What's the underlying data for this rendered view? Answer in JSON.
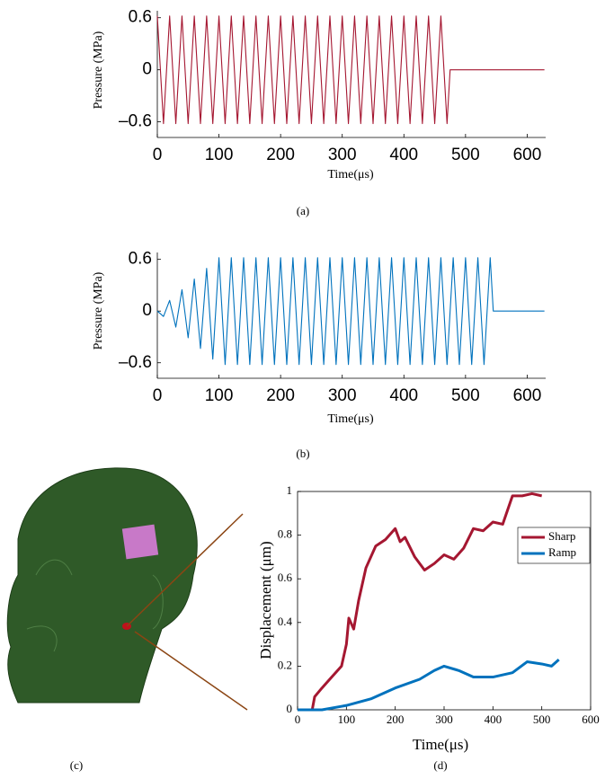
{
  "panel_labels": [
    "(a)",
    "(b)",
    "(c)",
    "(d)"
  ],
  "chart_data": [
    {
      "type": "line",
      "xlabel": "Time(μs)",
      "ylabel": "Pressure (MPa)",
      "color": "#a51731",
      "box": false,
      "xlim": [
        0,
        630
      ],
      "ylim": [
        -0.78,
        0.68
      ],
      "xticks": [
        0,
        100,
        200,
        300,
        400,
        500,
        600
      ],
      "yticks": [
        {
          "value": -0.6,
          "label": "–0.6"
        },
        0,
        0.6
      ],
      "x": [
        0,
        10,
        20,
        30,
        40,
        50,
        60,
        70,
        80,
        90,
        100,
        110,
        120,
        130,
        140,
        150,
        160,
        170,
        180,
        190,
        200,
        210,
        220,
        230,
        240,
        250,
        260,
        270,
        280,
        290,
        300,
        310,
        320,
        330,
        340,
        350,
        360,
        370,
        380,
        390,
        400,
        410,
        420,
        430,
        440,
        450,
        460,
        470,
        475,
        628
      ],
      "values": [
        0.62,
        -0.62,
        0.62,
        -0.62,
        0.62,
        -0.62,
        0.62,
        -0.62,
        0.62,
        -0.62,
        0.62,
        -0.62,
        0.62,
        -0.62,
        0.62,
        -0.62,
        0.62,
        -0.62,
        0.62,
        -0.62,
        0.62,
        -0.62,
        0.62,
        -0.62,
        0.62,
        -0.62,
        0.62,
        -0.62,
        0.62,
        -0.62,
        0.62,
        -0.62,
        0.62,
        -0.62,
        0.62,
        -0.62,
        0.62,
        -0.62,
        0.62,
        -0.62,
        0.62,
        -0.62,
        0.62,
        -0.62,
        0.62,
        -0.62,
        0.62,
        -0.62,
        0,
        0
      ]
    },
    {
      "type": "line",
      "xlabel": "Time(μs)",
      "ylabel": "Pressure (MPa)",
      "color": "#0072bd",
      "box": false,
      "xlim": [
        0,
        630
      ],
      "ylim": [
        -0.78,
        0.68
      ],
      "xticks": [
        0,
        100,
        200,
        300,
        400,
        500,
        600
      ],
      "yticks": [
        {
          "value": -0.6,
          "label": "–0.6"
        },
        0,
        0.6
      ],
      "x": [
        0,
        10,
        20,
        30,
        40,
        50,
        60,
        70,
        80,
        90,
        100,
        110,
        120,
        130,
        140,
        150,
        160,
        170,
        180,
        190,
        200,
        210,
        220,
        230,
        240,
        250,
        260,
        270,
        280,
        290,
        300,
        310,
        320,
        330,
        340,
        350,
        360,
        370,
        380,
        390,
        400,
        410,
        420,
        430,
        440,
        450,
        460,
        470,
        480,
        490,
        500,
        510,
        520,
        530,
        540,
        545,
        628
      ],
      "values": [
        0,
        -0.062,
        0.124,
        -0.186,
        0.248,
        -0.31,
        0.372,
        -0.434,
        0.496,
        -0.558,
        0.62,
        -0.62,
        0.62,
        -0.62,
        0.62,
        -0.62,
        0.62,
        -0.62,
        0.62,
        -0.62,
        0.62,
        -0.62,
        0.62,
        -0.62,
        0.62,
        -0.62,
        0.62,
        -0.62,
        0.62,
        -0.62,
        0.62,
        -0.62,
        0.62,
        -0.62,
        0.62,
        -0.62,
        0.62,
        -0.62,
        0.62,
        -0.62,
        0.62,
        -0.62,
        0.62,
        -0.62,
        0.62,
        -0.62,
        0.62,
        -0.62,
        0.62,
        -0.62,
        0.62,
        -0.62,
        0.62,
        -0.62,
        0.62,
        0,
        0
      ]
    },
    {
      "type": "line",
      "xlabel": "Time(μs)",
      "ylabel": "Displacement (μm)",
      "box": true,
      "legend": "upper right",
      "xlim": [
        0,
        600
      ],
      "ylim": [
        0,
        1
      ],
      "xticks": [
        0,
        100,
        200,
        300,
        400,
        500,
        600
      ],
      "yticks": [
        0,
        0.2,
        0.4,
        0.6,
        0.8,
        1
      ],
      "series": [
        {
          "name": "Sharp",
          "color": "#a51731",
          "x": [
            0,
            30,
            35,
            50,
            70,
            90,
            100,
            105,
            115,
            125,
            140,
            160,
            180,
            200,
            210,
            220,
            240,
            260,
            280,
            300,
            320,
            340,
            360,
            380,
            400,
            420,
            440,
            460,
            480,
            500
          ],
          "values": [
            0,
            0,
            0.06,
            0.1,
            0.15,
            0.2,
            0.3,
            0.42,
            0.37,
            0.5,
            0.65,
            0.75,
            0.78,
            0.83,
            0.77,
            0.79,
            0.7,
            0.64,
            0.67,
            0.71,
            0.69,
            0.74,
            0.83,
            0.82,
            0.86,
            0.85,
            0.98,
            0.98,
            0.99,
            0.98
          ]
        },
        {
          "name": "Ramp",
          "color": "#0072bd",
          "x": [
            0,
            50,
            100,
            150,
            200,
            250,
            280,
            300,
            330,
            360,
            400,
            440,
            470,
            500,
            520,
            535
          ],
          "values": [
            0,
            0,
            0.02,
            0.05,
            0.1,
            0.14,
            0.18,
            0.2,
            0.18,
            0.15,
            0.15,
            0.17,
            0.22,
            0.21,
            0.2,
            0.23
          ]
        }
      ]
    }
  ]
}
